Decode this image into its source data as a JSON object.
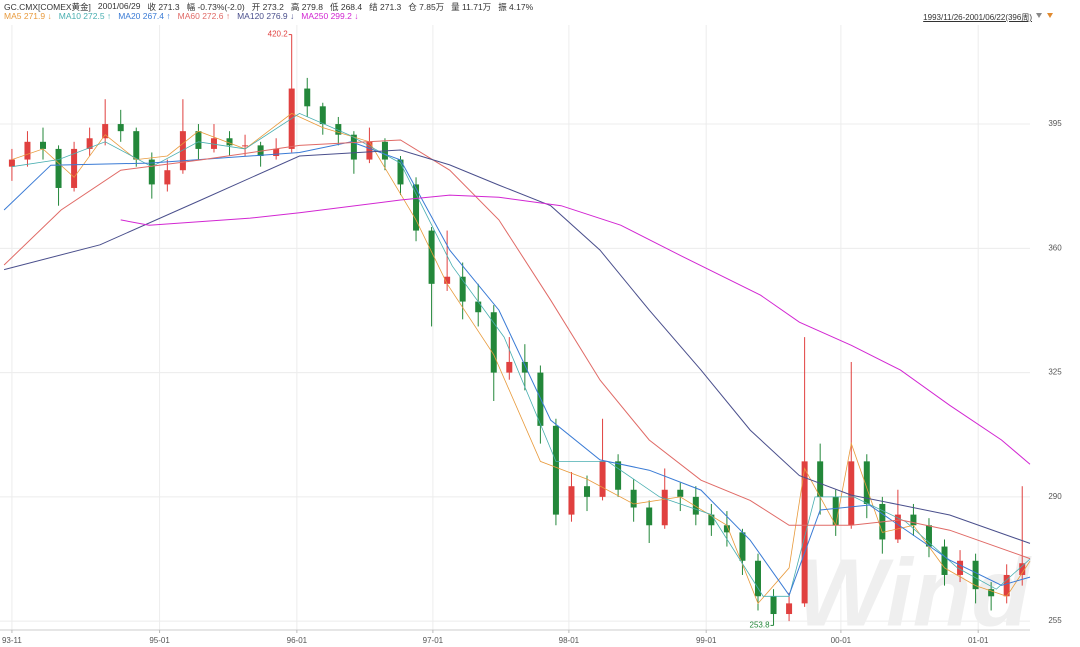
{
  "chart_data": {
    "type": "candlestick",
    "title": "GC.CMX[COMEX黄金]",
    "info": [
      "2001/06/29",
      "收 271.3",
      "幅 -0.73%(-2.0)",
      "开 273.2",
      "高 279.8",
      "低 268.4",
      "结 271.3",
      "仓 7.85万",
      "量 11.71万",
      "振 4.17%"
    ],
    "range_label": "1993/11/26-2001/06/22(396周)",
    "watermark": "Wind",
    "up_color": "#e0403f",
    "down_color": "#23873a",
    "label_extremes": true,
    "grid": true,
    "xlim": [
      -4.6,
      393
    ],
    "ylim": [
      252.5,
      422.9
    ],
    "yticks": [
      255,
      290,
      325,
      360,
      395
    ],
    "xticks": [
      {
        "value": 0,
        "label": "93-11"
      },
      {
        "value": 57,
        "label": "95-01"
      },
      {
        "value": 110,
        "label": "96-01"
      },
      {
        "value": 162.5,
        "label": "97-01"
      },
      {
        "value": 215,
        "label": "98-01"
      },
      {
        "value": 268,
        "label": "99-01"
      },
      {
        "value": 320,
        "label": "00-01"
      },
      {
        "value": 373,
        "label": "01-01"
      }
    ],
    "candles": {
      "x": [
        0,
        6,
        12,
        18,
        24,
        30,
        36,
        42,
        48,
        54,
        60,
        66,
        72,
        78,
        84,
        90,
        96,
        102,
        108,
        114,
        120,
        126,
        132,
        138,
        144,
        150,
        156,
        162,
        168,
        174,
        180,
        186,
        192,
        198,
        204,
        210,
        216,
        222,
        228,
        234,
        240,
        246,
        252,
        258,
        264,
        270,
        276,
        282,
        288,
        294,
        300,
        306,
        312,
        318,
        324,
        330,
        336,
        342,
        348,
        354,
        360,
        366,
        372,
        378,
        384,
        390
      ],
      "open": [
        383,
        385,
        390,
        388,
        377,
        388,
        391,
        395,
        393,
        385,
        378,
        382,
        393,
        388,
        391,
        389,
        389,
        386,
        388,
        405,
        400,
        395,
        392,
        385,
        390,
        385,
        378,
        365,
        350,
        352,
        345,
        342,
        325,
        328,
        325,
        310,
        285,
        293,
        290,
        300,
        292,
        287,
        282,
        292,
        290,
        285,
        282,
        280,
        272,
        262,
        257,
        260,
        300,
        290,
        282,
        300,
        288,
        278,
        285,
        282,
        276,
        268,
        272,
        264,
        262,
        268
      ],
      "high": [
        388,
        393,
        394,
        389,
        390,
        394,
        402,
        399,
        394,
        387,
        385,
        402,
        395,
        395,
        393,
        392,
        390,
        391,
        420.2,
        408,
        401,
        397,
        393,
        394,
        391,
        386,
        380,
        366,
        365,
        356,
        350,
        344,
        335,
        333,
        327,
        312,
        297,
        296,
        312,
        302,
        295,
        289,
        298,
        294,
        293,
        288,
        286,
        281,
        274,
        264,
        263,
        335,
        305,
        292,
        328,
        302,
        290,
        292,
        288,
        284,
        278,
        275,
        274,
        266,
        271,
        293
      ],
      "low": [
        379,
        383,
        385,
        372,
        376,
        386,
        389,
        390,
        383,
        374,
        376,
        381,
        385,
        387,
        386,
        386,
        383,
        385,
        387,
        397,
        392,
        389,
        381,
        384,
        382,
        375,
        362,
        338,
        348,
        340,
        338,
        317,
        323,
        320,
        305,
        282,
        283,
        286,
        289,
        290,
        283,
        277,
        281,
        286,
        282,
        279,
        276,
        268,
        258,
        253.8,
        255,
        259,
        285,
        279,
        281,
        284,
        274,
        277,
        279,
        273,
        265,
        266,
        260,
        258,
        260,
        265
      ],
      "close": [
        385,
        390,
        388,
        377,
        388,
        391,
        395,
        393,
        385,
        378,
        382,
        393,
        388,
        391,
        389,
        389,
        386,
        388,
        405,
        400,
        395,
        392,
        385,
        390,
        385,
        378,
        365,
        350,
        352,
        345,
        342,
        325,
        328,
        325,
        310,
        285,
        293,
        290,
        300,
        292,
        287,
        282,
        292,
        290,
        285,
        282,
        280,
        272,
        262,
        257,
        260,
        300,
        290,
        282,
        300,
        288,
        278,
        285,
        282,
        276,
        268,
        272,
        264,
        262,
        268,
        271.3
      ]
    },
    "series": [
      {
        "name": "MA5 271.9 ↓",
        "color": "#e89a3c",
        "x": [
          0,
          12,
          24,
          36,
          48,
          60,
          72,
          90,
          108,
          120,
          138,
          156,
          168,
          186,
          204,
          222,
          240,
          258,
          276,
          288,
          300,
          306,
          318,
          324,
          336,
          348,
          360,
          372,
          384,
          393
        ],
        "values": [
          385,
          388,
          380,
          392,
          385,
          386,
          393,
          388,
          398,
          394,
          390,
          368,
          350,
          330,
          300,
          295,
          288,
          290,
          282,
          260,
          270,
          298,
          282,
          305,
          280,
          282,
          270,
          265,
          262,
          271.9
        ]
      },
      {
        "name": "MA10 272.5 ↑",
        "color": "#48aeb0",
        "x": [
          0,
          18,
          36,
          54,
          72,
          90,
          111,
          130,
          150,
          170,
          190,
          210,
          230,
          250,
          270,
          290,
          300,
          310,
          325,
          345,
          365,
          380,
          393
        ],
        "values": [
          383,
          385,
          390,
          383,
          390,
          388,
          398,
          392,
          384,
          355,
          335,
          300,
          300,
          290,
          285,
          262,
          262,
          290,
          290,
          283,
          270,
          264,
          272.5
        ]
      },
      {
        "name": "MA20 267.4 ↑",
        "color": "#3a7bd5",
        "x": [
          -3,
          15,
          53,
          111,
          131,
          150,
          169,
          188,
          208,
          227,
          246,
          266,
          285,
          300,
          312,
          331,
          362,
          382,
          393
        ],
        "values": [
          370.8,
          383.4,
          384,
          387,
          390,
          384.9,
          359.5,
          342.6,
          311.6,
          300.4,
          297.5,
          291.9,
          277.8,
          262.3,
          286.3,
          287.7,
          272.2,
          265.1,
          267.4
        ]
      },
      {
        "name": "MA60 272.6 ↑",
        "color": "#e06a66",
        "x": [
          -3,
          19,
          42,
          73,
          111,
          150,
          169,
          188,
          208,
          227,
          246,
          266,
          285,
          300,
          324,
          343,
          362,
          393
        ],
        "values": [
          355.3,
          370.8,
          382,
          384.9,
          389,
          390.5,
          382,
          368,
          345.4,
          322.9,
          306,
          294.7,
          289,
          282,
          282,
          283.5,
          280.6,
          272.6
        ]
      },
      {
        "name": "MA120 276.9 ↓",
        "color": "#4a4f8c",
        "x": [
          -3,
          34,
          73,
          111,
          150,
          169,
          188,
          208,
          227,
          246,
          266,
          285,
          304,
          324,
          343,
          362,
          393
        ],
        "values": [
          354,
          361,
          373.6,
          386,
          387.7,
          383.5,
          377.8,
          372,
          359.5,
          342.6,
          325.7,
          308.8,
          296,
          290.5,
          287.7,
          284.9,
          276.9
        ]
      },
      {
        "name": "MA250 299.2 ↓",
        "color": "#d226d2",
        "x": [
          42,
          53,
          92,
          111,
          150,
          169,
          188,
          212,
          235,
          258,
          289,
          304,
          324,
          343,
          362,
          382,
          393
        ],
        "values": [
          368,
          366.5,
          368.5,
          370,
          373.6,
          375,
          374.4,
          372,
          366.5,
          358,
          346.8,
          339.2,
          332.7,
          325.7,
          315.8,
          306,
          299.2
        ]
      }
    ]
  }
}
